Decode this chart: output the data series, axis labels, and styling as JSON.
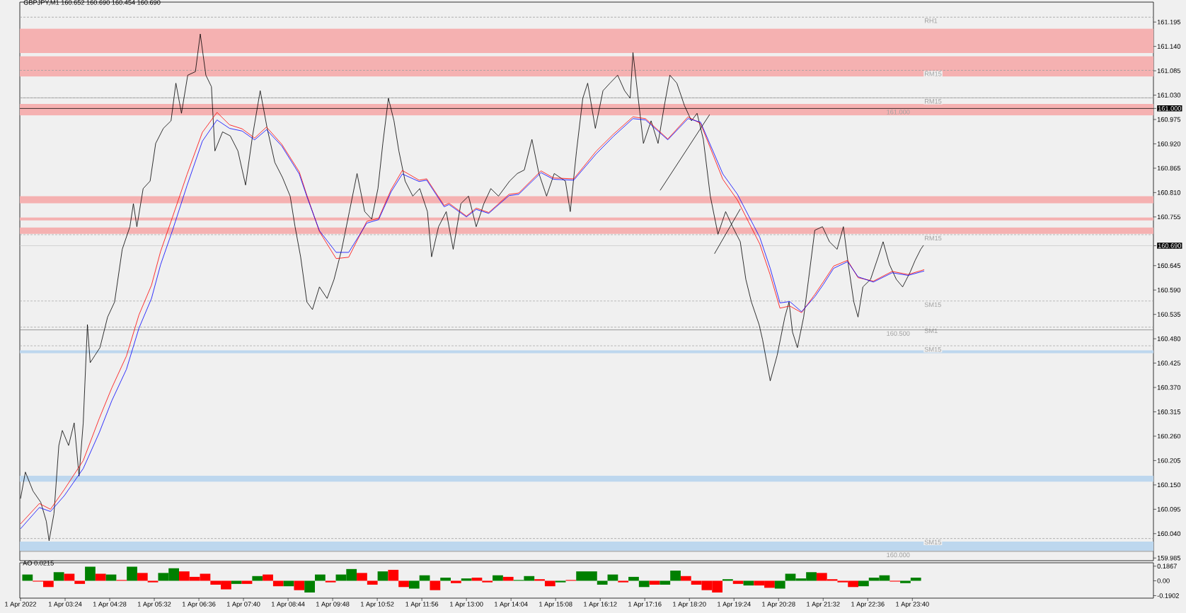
{
  "chart_data": [
    {
      "type": "line",
      "title": "GBPJPY,M1 160.652 160.690 160.454 160.690",
      "xlim": [
        "2022-04-01T02:19",
        "2022-04-02T05:26"
      ],
      "ylim": [
        159.979,
        161.24
      ],
      "tick_labels": "y",
      "yticks": [
        {
          "value": 161.195,
          "label": "161.195"
        },
        {
          "value": 161.14,
          "label": "161.140"
        },
        {
          "value": 161.085,
          "label": "161.085"
        },
        {
          "value": 161.03,
          "label": "161.030"
        },
        {
          "value": 161.0,
          "label": "161.000"
        },
        {
          "value": 160.975,
          "label": "160.975"
        },
        {
          "value": 160.92,
          "label": "160.920"
        },
        {
          "value": 160.865,
          "label": "160.865"
        },
        {
          "value": 160.81,
          "label": "160.810"
        },
        {
          "value": 160.755,
          "label": "160.755"
        },
        {
          "value": 160.69,
          "label": "160.690"
        },
        {
          "value": 160.645,
          "label": "160.645"
        },
        {
          "value": 160.59,
          "label": "160.590"
        },
        {
          "value": 160.535,
          "label": "160.535"
        },
        {
          "value": 160.48,
          "label": "160.480"
        },
        {
          "value": 160.425,
          "label": "160.425"
        },
        {
          "value": 160.37,
          "label": "160.370"
        },
        {
          "value": 160.315,
          "label": "160.315"
        },
        {
          "value": 160.26,
          "label": "160.260"
        },
        {
          "value": 160.205,
          "label": "160.205"
        },
        {
          "value": 160.15,
          "label": "160.150"
        },
        {
          "value": 160.095,
          "label": "160.095"
        },
        {
          "value": 160.04,
          "label": "160.040"
        },
        {
          "value": 159.985,
          "label": "159.985"
        }
      ],
      "bands": [
        {
          "axis": "y",
          "from": 161.125,
          "to": 161.18,
          "color": "#f5b1b1"
        },
        {
          "axis": "y",
          "from": 161.072,
          "to": 161.118,
          "color": "#f5b1b1"
        },
        {
          "axis": "y",
          "from": 160.984,
          "to": 161.01,
          "color": "#f5b1b1"
        },
        {
          "axis": "y",
          "from": 160.786,
          "to": 160.802,
          "color": "#f5b1b1"
        },
        {
          "axis": "y",
          "from": 160.747,
          "to": 160.754,
          "color": "#f5b1b1"
        },
        {
          "axis": "y",
          "from": 160.717,
          "to": 160.731,
          "color": "#f5b1b1"
        },
        {
          "axis": "y",
          "from": 160.447,
          "to": 160.454,
          "color": "#bdd7ee"
        },
        {
          "axis": "y",
          "from": 160.157,
          "to": 160.171,
          "color": "#bdd7ee"
        },
        {
          "axis": "y",
          "from": 160.001,
          "to": 160.022,
          "color": "#bdd7ee"
        }
      ],
      "ref_lines": [
        {
          "axis": "y",
          "value": 161.206,
          "label": "RH1",
          "color": "#a0a0a0",
          "line_style": "dashed"
        },
        {
          "axis": "y",
          "value": 161.086,
          "label": "RM15",
          "color": "#a0a0a0",
          "line_style": "dashed"
        },
        {
          "axis": "y",
          "value": 161.024,
          "color": "#a0a0a0",
          "line_style": "solid"
        },
        {
          "axis": "y",
          "value": 161.024,
          "label": "RM15",
          "color": "#a0a0a0",
          "line_style": "dashed"
        },
        {
          "axis": "y",
          "value": 161.0,
          "label": "161.000",
          "color": "#000000",
          "line_style": "solid"
        },
        {
          "axis": "y",
          "value": 160.715,
          "label": "RM15",
          "color": "#a0a0a0",
          "line_style": "dashed"
        },
        {
          "axis": "y",
          "value": 160.69,
          "color": "#c8c8c8",
          "line_style": "solid"
        },
        {
          "axis": "y",
          "value": 160.565,
          "label": "SM15",
          "color": "#a0a0a0",
          "line_style": "dashed"
        },
        {
          "axis": "y",
          "value": 160.506,
          "label": "SM1",
          "color": "#a0a0a0",
          "line_style": "dashed"
        },
        {
          "axis": "y",
          "value": 160.5,
          "label": "160.500",
          "color": "#808080",
          "line_style": "solid"
        },
        {
          "axis": "y",
          "value": 160.464,
          "label": "SM15",
          "color": "#a0a0a0",
          "line_style": "dashed"
        },
        {
          "axis": "y",
          "value": 160.029,
          "label": "SM15",
          "color": "#a0a0a0",
          "line_style": "dashed"
        },
        {
          "axis": "y",
          "value": 160.0,
          "label": "160.000",
          "color": "#808080",
          "line_style": "solid"
        }
      ],
      "series": [
        {
          "color": "#000000",
          "x": [
            "2022-04-01T02:20",
            "2022-04-01T02:27",
            "2022-04-01T02:38",
            "2022-04-01T02:49",
            "2022-04-01T02:57",
            "2022-04-01T03:01",
            "2022-04-01T03:08",
            "2022-04-01T03:15",
            "2022-04-01T03:20",
            "2022-04-01T03:29",
            "2022-04-01T03:37",
            "2022-04-01T03:44",
            "2022-04-01T03:50",
            "2022-04-01T03:56",
            "2022-04-01T04:00",
            "2022-04-01T04:07",
            "2022-04-01T04:14",
            "2022-04-01T04:25",
            "2022-04-01T04:35",
            "2022-04-01T04:46",
            "2022-04-01T04:57",
            "2022-04-01T05:02",
            "2022-04-01T05:07",
            "2022-04-01T05:16",
            "2022-04-01T05:26",
            "2022-04-01T05:34",
            "2022-04-01T05:45",
            "2022-04-01T05:56",
            "2022-04-01T06:03",
            "2022-04-01T06:11",
            "2022-04-01T06:20",
            "2022-04-01T06:31",
            "2022-04-01T06:38",
            "2022-04-01T06:46",
            "2022-04-01T06:54",
            "2022-04-01T06:59",
            "2022-04-01T07:10",
            "2022-04-01T07:21",
            "2022-04-01T07:32",
            "2022-04-01T07:43",
            "2022-04-01T07:53",
            "2022-04-01T08:04",
            "2022-04-01T08:14",
            "2022-04-01T08:25",
            "2022-04-01T08:36",
            "2022-04-01T08:47",
            "2022-04-01T08:54",
            "2022-04-01T09:02",
            "2022-04-01T09:11",
            "2022-04-01T09:19",
            "2022-04-01T09:29",
            "2022-04-01T09:40",
            "2022-04-01T09:50",
            "2022-04-01T10:01",
            "2022-04-01T10:12",
            "2022-04-01T10:23",
            "2022-04-01T10:34",
            "2022-04-01T10:44",
            "2022-04-01T10:53",
            "2022-04-01T11:00",
            "2022-04-01T11:08",
            "2022-04-01T11:16",
            "2022-04-01T11:23",
            "2022-04-01T11:32",
            "2022-04-01T11:43",
            "2022-04-01T11:53",
            "2022-04-01T12:04",
            "2022-04-01T12:10",
            "2022-04-01T12:20",
            "2022-04-01T12:31",
            "2022-04-01T12:41",
            "2022-04-01T12:52",
            "2022-04-01T13:03",
            "2022-04-01T13:14",
            "2022-04-01T13:25",
            "2022-04-01T13:35",
            "2022-04-01T13:46",
            "2022-04-01T14:02",
            "2022-04-01T14:13",
            "2022-04-01T14:23",
            "2022-04-01T14:34",
            "2022-04-01T14:44",
            "2022-04-01T14:55",
            "2022-04-01T15:06",
            "2022-04-01T15:22",
            "2022-04-01T15:29",
            "2022-04-01T15:38",
            "2022-04-01T15:47",
            "2022-04-01T15:54",
            "2022-04-01T16:05",
            "2022-04-01T16:16",
            "2022-04-01T16:26",
            "2022-04-01T16:37",
            "2022-04-01T16:47",
            "2022-04-01T16:55",
            "2022-04-01T16:59",
            "2022-04-01T17:09",
            "2022-04-01T17:14",
            "2022-04-01T17:25",
            "2022-04-01T17:35",
            "2022-04-01T17:44",
            "2022-04-01T17:52",
            "2022-04-01T18:02",
            "2022-04-01T18:13",
            "2022-04-01T18:23",
            "2022-04-01T18:31",
            "2022-04-01T18:40",
            "2022-04-01T18:50",
            "2022-04-01T19:01",
            "2022-04-01T19:12",
            "2022-04-01T19:22",
            "2022-04-01T19:33",
            "2022-04-01T19:41",
            "2022-04-01T19:49",
            "2022-04-01T20:00",
            "2022-04-01T20:05",
            "2022-04-01T20:16",
            "2022-04-01T20:26",
            "2022-04-01T20:37",
            "2022-04-01T20:43",
            "2022-04-01T20:48",
            "2022-04-01T20:55",
            "2022-04-01T21:04",
            "2022-04-01T21:11",
            "2022-04-01T21:20",
            "2022-04-01T21:31",
            "2022-04-01T21:41",
            "2022-04-01T21:52",
            "2022-04-01T22:01",
            "2022-04-01T22:08",
            "2022-04-01T22:16",
            "2022-04-01T22:22",
            "2022-04-01T22:29",
            "2022-04-01T22:40",
            "2022-04-01T22:51",
            "2022-04-01T22:58",
            "2022-04-01T23:07",
            "2022-04-01T23:17",
            "2022-04-01T23:26",
            "2022-04-01T23:37",
            "2022-04-01T23:44",
            "2022-04-01T23:52",
            "2022-04-01T23:56"
          ],
          "values": [
            160.119,
            160.179,
            160.136,
            160.111,
            160.068,
            160.024,
            160.085,
            160.239,
            160.273,
            160.239,
            160.29,
            160.17,
            160.29,
            160.512,
            160.426,
            160.443,
            160.46,
            160.529,
            160.563,
            160.682,
            160.733,
            160.785,
            160.733,
            160.819,
            160.836,
            160.921,
            160.955,
            160.972,
            161.057,
            160.989,
            161.075,
            161.083,
            161.168,
            161.075,
            161.049,
            160.904,
            160.947,
            160.938,
            160.904,
            160.827,
            160.938,
            161.04,
            160.955,
            160.878,
            160.844,
            160.802,
            160.733,
            160.665,
            160.563,
            160.546,
            160.597,
            160.571,
            160.614,
            160.682,
            160.767,
            160.853,
            160.767,
            160.75,
            160.819,
            160.921,
            161.023,
            160.972,
            160.904,
            160.836,
            160.802,
            160.819,
            160.767,
            160.665,
            160.733,
            160.767,
            160.682,
            160.785,
            160.802,
            160.733,
            160.785,
            160.819,
            160.802,
            160.836,
            160.853,
            160.861,
            160.93,
            160.853,
            160.802,
            160.853,
            160.836,
            160.767,
            160.904,
            161.023,
            161.057,
            160.955,
            161.04,
            161.057,
            161.075,
            161.04,
            161.023,
            161.126,
            160.989,
            160.921,
            160.972,
            160.921,
            161.006,
            161.075,
            161.057,
            161.006,
            160.972,
            160.989,
            160.93,
            160.802,
            160.716,
            160.767,
            160.733,
            160.699,
            160.614,
            160.563,
            160.512,
            160.478,
            160.385,
            160.443,
            160.529,
            160.563,
            160.495,
            160.46,
            160.529,
            160.614,
            160.725,
            160.733,
            160.699,
            160.682,
            160.733,
            160.648,
            160.563,
            160.529,
            160.597,
            160.614,
            160.665,
            160.699,
            160.648,
            160.614,
            160.597,
            160.631,
            160.657,
            160.682,
            160.691
          ]
        },
        {
          "color": "#ff0000",
          "x": [
            "2022-04-01T02:20",
            "2022-04-01T02:47",
            "2022-04-01T03:03",
            "2022-04-01T03:23",
            "2022-04-01T03:50",
            "2022-04-01T04:13",
            "2022-04-01T04:31",
            "2022-04-01T04:52",
            "2022-04-01T05:10",
            "2022-04-01T05:28",
            "2022-04-01T05:41",
            "2022-04-01T05:58",
            "2022-04-01T06:19",
            "2022-04-01T06:41",
            "2022-04-01T07:02",
            "2022-04-01T07:20",
            "2022-04-01T07:38",
            "2022-04-01T07:56",
            "2022-04-01T08:13",
            "2022-04-01T08:35",
            "2022-04-01T09:00",
            "2022-04-01T09:11",
            "2022-04-01T09:29",
            "2022-04-01T09:53",
            "2022-04-01T10:11",
            "2022-04-01T10:37",
            "2022-04-01T10:54",
            "2022-04-01T11:12",
            "2022-04-01T11:28",
            "2022-04-01T11:52",
            "2022-04-01T12:03",
            "2022-04-01T12:28",
            "2022-04-01T12:35",
            "2022-04-01T13:00",
            "2022-04-01T13:14",
            "2022-04-01T13:32",
            "2022-04-01T14:01",
            "2022-04-01T14:15",
            "2022-04-01T14:47",
            "2022-04-01T15:05",
            "2022-04-01T15:34",
            "2022-04-01T16:06",
            "2022-04-01T16:31",
            "2022-04-01T16:59",
            "2022-04-01T17:17",
            "2022-04-01T17:49",
            "2022-04-01T18:18",
            "2022-04-01T18:36",
            "2022-04-01T19:08",
            "2022-04-01T19:29",
            "2022-04-01T20:01",
            "2022-04-01T20:16",
            "2022-04-01T20:30",
            "2022-04-01T20:44",
            "2022-04-01T21:01",
            "2022-04-01T21:20",
            "2022-04-01T21:32",
            "2022-04-01T21:47",
            "2022-04-01T22:07",
            "2022-04-01T22:22",
            "2022-04-01T22:44",
            "2022-04-01T23:11",
            "2022-04-01T23:34",
            "2022-04-01T23:57"
          ],
          "values": [
            160.062,
            160.108,
            160.095,
            160.14,
            160.205,
            160.3,
            160.369,
            160.441,
            160.534,
            160.601,
            160.677,
            160.754,
            160.851,
            160.946,
            160.991,
            160.963,
            160.954,
            160.933,
            160.958,
            160.919,
            160.857,
            160.804,
            160.722,
            160.661,
            160.664,
            160.745,
            160.752,
            160.817,
            160.86,
            160.838,
            160.841,
            160.781,
            160.786,
            160.757,
            160.775,
            160.765,
            160.806,
            160.809,
            160.859,
            160.843,
            160.841,
            160.903,
            160.942,
            160.981,
            160.977,
            160.931,
            160.981,
            160.966,
            160.84,
            160.793,
            160.694,
            160.624,
            160.549,
            160.554,
            160.539,
            160.58,
            160.608,
            160.644,
            160.657,
            160.618,
            160.61,
            160.632,
            160.625,
            160.636
          ]
        },
        {
          "color": "#0000ff",
          "x": [
            "2022-04-01T02:20",
            "2022-04-01T02:47",
            "2022-04-01T03:03",
            "2022-04-01T03:23",
            "2022-04-01T03:50",
            "2022-04-01T04:13",
            "2022-04-01T04:31",
            "2022-04-01T04:52",
            "2022-04-01T05:10",
            "2022-04-01T05:28",
            "2022-04-01T05:41",
            "2022-04-01T05:58",
            "2022-04-01T06:19",
            "2022-04-01T06:41",
            "2022-04-01T07:02",
            "2022-04-01T07:20",
            "2022-04-01T07:38",
            "2022-04-01T07:56",
            "2022-04-01T08:13",
            "2022-04-01T08:35",
            "2022-04-01T09:00",
            "2022-04-01T09:11",
            "2022-04-01T09:29",
            "2022-04-01T09:53",
            "2022-04-01T10:11",
            "2022-04-01T10:37",
            "2022-04-01T10:54",
            "2022-04-01T11:12",
            "2022-04-01T11:28",
            "2022-04-01T11:52",
            "2022-04-01T12:03",
            "2022-04-01T12:28",
            "2022-04-01T12:35",
            "2022-04-01T13:00",
            "2022-04-01T13:14",
            "2022-04-01T13:32",
            "2022-04-01T14:01",
            "2022-04-01T14:15",
            "2022-04-01T14:47",
            "2022-04-01T15:05",
            "2022-04-01T15:34",
            "2022-04-01T16:06",
            "2022-04-01T16:31",
            "2022-04-01T16:59",
            "2022-04-01T17:17",
            "2022-04-01T17:49",
            "2022-04-01T18:18",
            "2022-04-01T18:36",
            "2022-04-01T19:08",
            "2022-04-01T19:29",
            "2022-04-01T20:01",
            "2022-04-01T20:16",
            "2022-04-01T20:30",
            "2022-04-01T20:44",
            "2022-04-01T21:01",
            "2022-04-01T21:20",
            "2022-04-01T21:32",
            "2022-04-01T21:47",
            "2022-04-01T22:07",
            "2022-04-01T22:22",
            "2022-04-01T22:44",
            "2022-04-01T23:11",
            "2022-04-01T23:34",
            "2022-04-01T23:57"
          ],
          "values": [
            160.051,
            160.099,
            160.09,
            160.126,
            160.187,
            160.268,
            160.34,
            160.411,
            160.504,
            160.571,
            160.647,
            160.724,
            160.826,
            160.926,
            160.974,
            160.955,
            160.949,
            160.929,
            160.952,
            160.915,
            160.852,
            160.801,
            160.724,
            160.675,
            160.675,
            160.741,
            160.749,
            160.812,
            160.852,
            160.835,
            160.838,
            160.778,
            160.783,
            160.755,
            160.772,
            160.763,
            160.803,
            160.806,
            160.855,
            160.84,
            160.838,
            160.897,
            160.937,
            160.977,
            160.974,
            160.929,
            160.977,
            160.969,
            160.852,
            160.806,
            160.709,
            160.639,
            160.561,
            160.564,
            160.541,
            160.575,
            160.602,
            160.639,
            160.654,
            160.62,
            160.608,
            160.629,
            160.623,
            160.633
          ]
        },
        {
          "color": "#000000",
          "x": [
            "2022-04-01T17:38",
            "2022-04-01T18:49"
          ],
          "values": [
            160.815,
            160.986
          ]
        },
        {
          "color": "#000000",
          "x": [
            "2022-04-01T18:56",
            "2022-04-01T19:33"
          ],
          "values": [
            160.672,
            160.773
          ]
        }
      ]
    },
    {
      "type": "bar",
      "title": "AO 0.0215",
      "xlim": [
        "2022-04-01T02:19",
        "2022-04-02T05:26"
      ],
      "ylim": [
        -0.222,
        0.23
      ],
      "xticks": [
        {
          "value": "2022-04-01T02:20",
          "label": "1 Apr 2022"
        },
        {
          "value": "2022-04-01T03:24",
          "label": "1 Apr 03:24"
        },
        {
          "value": "2022-04-01T04:28",
          "label": "1 Apr 04:28"
        },
        {
          "value": "2022-04-01T05:32",
          "label": "1 Apr 05:32"
        },
        {
          "value": "2022-04-01T06:36",
          "label": "1 Apr 06:36"
        },
        {
          "value": "2022-04-01T07:40",
          "label": "1 Apr 07:40"
        },
        {
          "value": "2022-04-01T08:44",
          "label": "1 Apr 08:44"
        },
        {
          "value": "2022-04-01T09:48",
          "label": "1 Apr 09:48"
        },
        {
          "value": "2022-04-01T10:52",
          "label": "1 Apr 10:52"
        },
        {
          "value": "2022-04-01T11:56",
          "label": "1 Apr 11:56"
        },
        {
          "value": "2022-04-01T13:00",
          "label": "1 Apr 13:00"
        },
        {
          "value": "2022-04-01T14:04",
          "label": "1 Apr 14:04"
        },
        {
          "value": "2022-04-01T15:08",
          "label": "1 Apr 15:08"
        },
        {
          "value": "2022-04-01T16:12",
          "label": "1 Apr 16:12"
        },
        {
          "value": "2022-04-01T17:16",
          "label": "1 Apr 17:16"
        },
        {
          "value": "2022-04-01T18:20",
          "label": "1 Apr 18:20"
        },
        {
          "value": "2022-04-01T19:24",
          "label": "1 Apr 19:24"
        },
        {
          "value": "2022-04-01T20:28",
          "label": "1 Apr 20:28"
        },
        {
          "value": "2022-04-01T21:32",
          "label": "1 Apr 21:32"
        },
        {
          "value": "2022-04-01T22:36",
          "label": "1 Apr 22:36"
        },
        {
          "value": "2022-04-01T23:40",
          "label": "1 Apr 23:40"
        }
      ],
      "yticks": [
        0.1867,
        {
          "value": 0,
          "label": "0.00"
        },
        -0.1902
      ],
      "x": [
        "2022-04-01T02:30",
        "2022-04-01T02:45",
        "2022-04-01T03:00",
        "2022-04-01T03:15",
        "2022-04-01T03:30",
        "2022-04-01T03:45",
        "2022-04-01T04:00",
        "2022-04-01T04:15",
        "2022-04-01T04:30",
        "2022-04-01T04:45",
        "2022-04-01T05:00",
        "2022-04-01T05:15",
        "2022-04-01T05:30",
        "2022-04-01T05:45",
        "2022-04-01T06:00",
        "2022-04-01T06:15",
        "2022-04-01T06:30",
        "2022-04-01T06:45",
        "2022-04-01T07:00",
        "2022-04-01T07:15",
        "2022-04-01T07:30",
        "2022-04-01T07:45",
        "2022-04-01T08:00",
        "2022-04-01T08:15",
        "2022-04-01T08:30",
        "2022-04-01T08:45",
        "2022-04-01T09:00",
        "2022-04-01T09:15",
        "2022-04-01T09:30",
        "2022-04-01T09:45",
        "2022-04-01T10:00",
        "2022-04-01T10:15",
        "2022-04-01T10:30",
        "2022-04-01T10:45",
        "2022-04-01T11:00",
        "2022-04-01T11:15",
        "2022-04-01T11:30",
        "2022-04-01T11:45",
        "2022-04-01T12:00",
        "2022-04-01T12:15",
        "2022-04-01T12:30",
        "2022-04-01T12:45",
        "2022-04-01T13:00",
        "2022-04-01T13:15",
        "2022-04-01T13:30",
        "2022-04-01T13:45",
        "2022-04-01T14:00",
        "2022-04-01T14:15",
        "2022-04-01T14:30",
        "2022-04-01T14:45",
        "2022-04-01T15:00",
        "2022-04-01T15:15",
        "2022-04-01T15:30",
        "2022-04-01T15:45",
        "2022-04-01T16:00",
        "2022-04-01T16:15",
        "2022-04-01T16:30",
        "2022-04-01T16:45",
        "2022-04-01T17:00",
        "2022-04-01T17:15",
        "2022-04-01T17:30",
        "2022-04-01T17:45",
        "2022-04-01T18:00",
        "2022-04-01T18:15",
        "2022-04-01T18:30",
        "2022-04-01T18:45",
        "2022-04-01T19:00",
        "2022-04-01T19:15",
        "2022-04-01T19:30",
        "2022-04-01T19:45",
        "2022-04-01T20:00",
        "2022-04-01T20:15",
        "2022-04-01T20:30",
        "2022-04-01T20:45",
        "2022-04-01T21:00",
        "2022-04-01T21:15",
        "2022-04-01T21:30",
        "2022-04-01T21:45",
        "2022-04-01T22:00",
        "2022-04-01T22:15",
        "2022-04-01T22:30",
        "2022-04-01T22:45",
        "2022-04-01T23:00",
        "2022-04-01T23:15",
        "2022-04-01T23:30",
        "2022-04-01T23:45"
      ],
      "values": [
        0.08,
        -0.01,
        -0.08,
        0.11,
        0.09,
        -0.04,
        0.18,
        0.09,
        0.08,
        0.01,
        0.18,
        0.1,
        -0.02,
        0.1,
        0.16,
        0.12,
        0.05,
        0.09,
        -0.05,
        -0.11,
        -0.04,
        -0.04,
        0.06,
        0.08,
        -0.07,
        -0.07,
        -0.12,
        -0.15,
        0.08,
        -0.02,
        0.08,
        0.15,
        0.1,
        -0.05,
        0.12,
        0.14,
        -0.08,
        -0.1,
        0.07,
        -0.12,
        0.04,
        -0.03,
        0.03,
        0.04,
        -0.02,
        0.07,
        0.05,
        0.01,
        0.06,
        0.02,
        -0.07,
        -0.02,
        0.01,
        0.12,
        0.12,
        -0.05,
        0.08,
        -0.02,
        0.05,
        -0.08,
        -0.05,
        -0.05,
        0.13,
        0.06,
        -0.05,
        -0.12,
        -0.15,
        0.02,
        -0.04,
        -0.06,
        -0.06,
        -0.09,
        -0.1,
        0.09,
        0.03,
        0.11,
        0.1,
        0.02,
        -0.02,
        -0.08,
        -0.07,
        0.04,
        0.07,
        -0.01,
        -0.03,
        0.04
      ],
      "colors": [
        "#008000",
        "#ff0000",
        "#ff0000",
        "#008000",
        "#ff0000",
        "#ff0000",
        "#008000",
        "#ff0000",
        "#008000",
        "#ff0000",
        "#008000",
        "#ff0000",
        "#ff0000",
        "#008000",
        "#008000",
        "#ff0000",
        "#ff0000",
        "#ff0000",
        "#ff0000",
        "#ff0000",
        "#008000",
        "#ff0000",
        "#008000",
        "#ff0000",
        "#ff0000",
        "#008000",
        "#ff0000",
        "#008000",
        "#008000",
        "#ff0000",
        "#008000",
        "#008000",
        "#ff0000",
        "#ff0000",
        "#008000",
        "#ff0000",
        "#ff0000",
        "#008000",
        "#008000",
        "#ff0000",
        "#008000",
        "#ff0000",
        "#008000",
        "#ff0000",
        "#ff0000",
        "#008000",
        "#ff0000",
        "#008000",
        "#008000",
        "#ff0000",
        "#ff0000",
        "#008000",
        "#ff0000",
        "#008000",
        "#008000",
        "#008000",
        "#008000",
        "#ff0000",
        "#008000",
        "#008000",
        "#ff0000",
        "#008000",
        "#008000",
        "#ff0000",
        "#ff0000",
        "#ff0000",
        "#ff0000",
        "#008000",
        "#ff0000",
        "#008000",
        "#ff0000",
        "#ff0000",
        "#008000",
        "#008000",
        "#008000",
        "#008000",
        "#ff0000",
        "#ff0000",
        "#ff0000",
        "#ff0000",
        "#008000",
        "#008000",
        "#008000",
        "#ff0000",
        "#008000",
        "#008000"
      ]
    }
  ]
}
